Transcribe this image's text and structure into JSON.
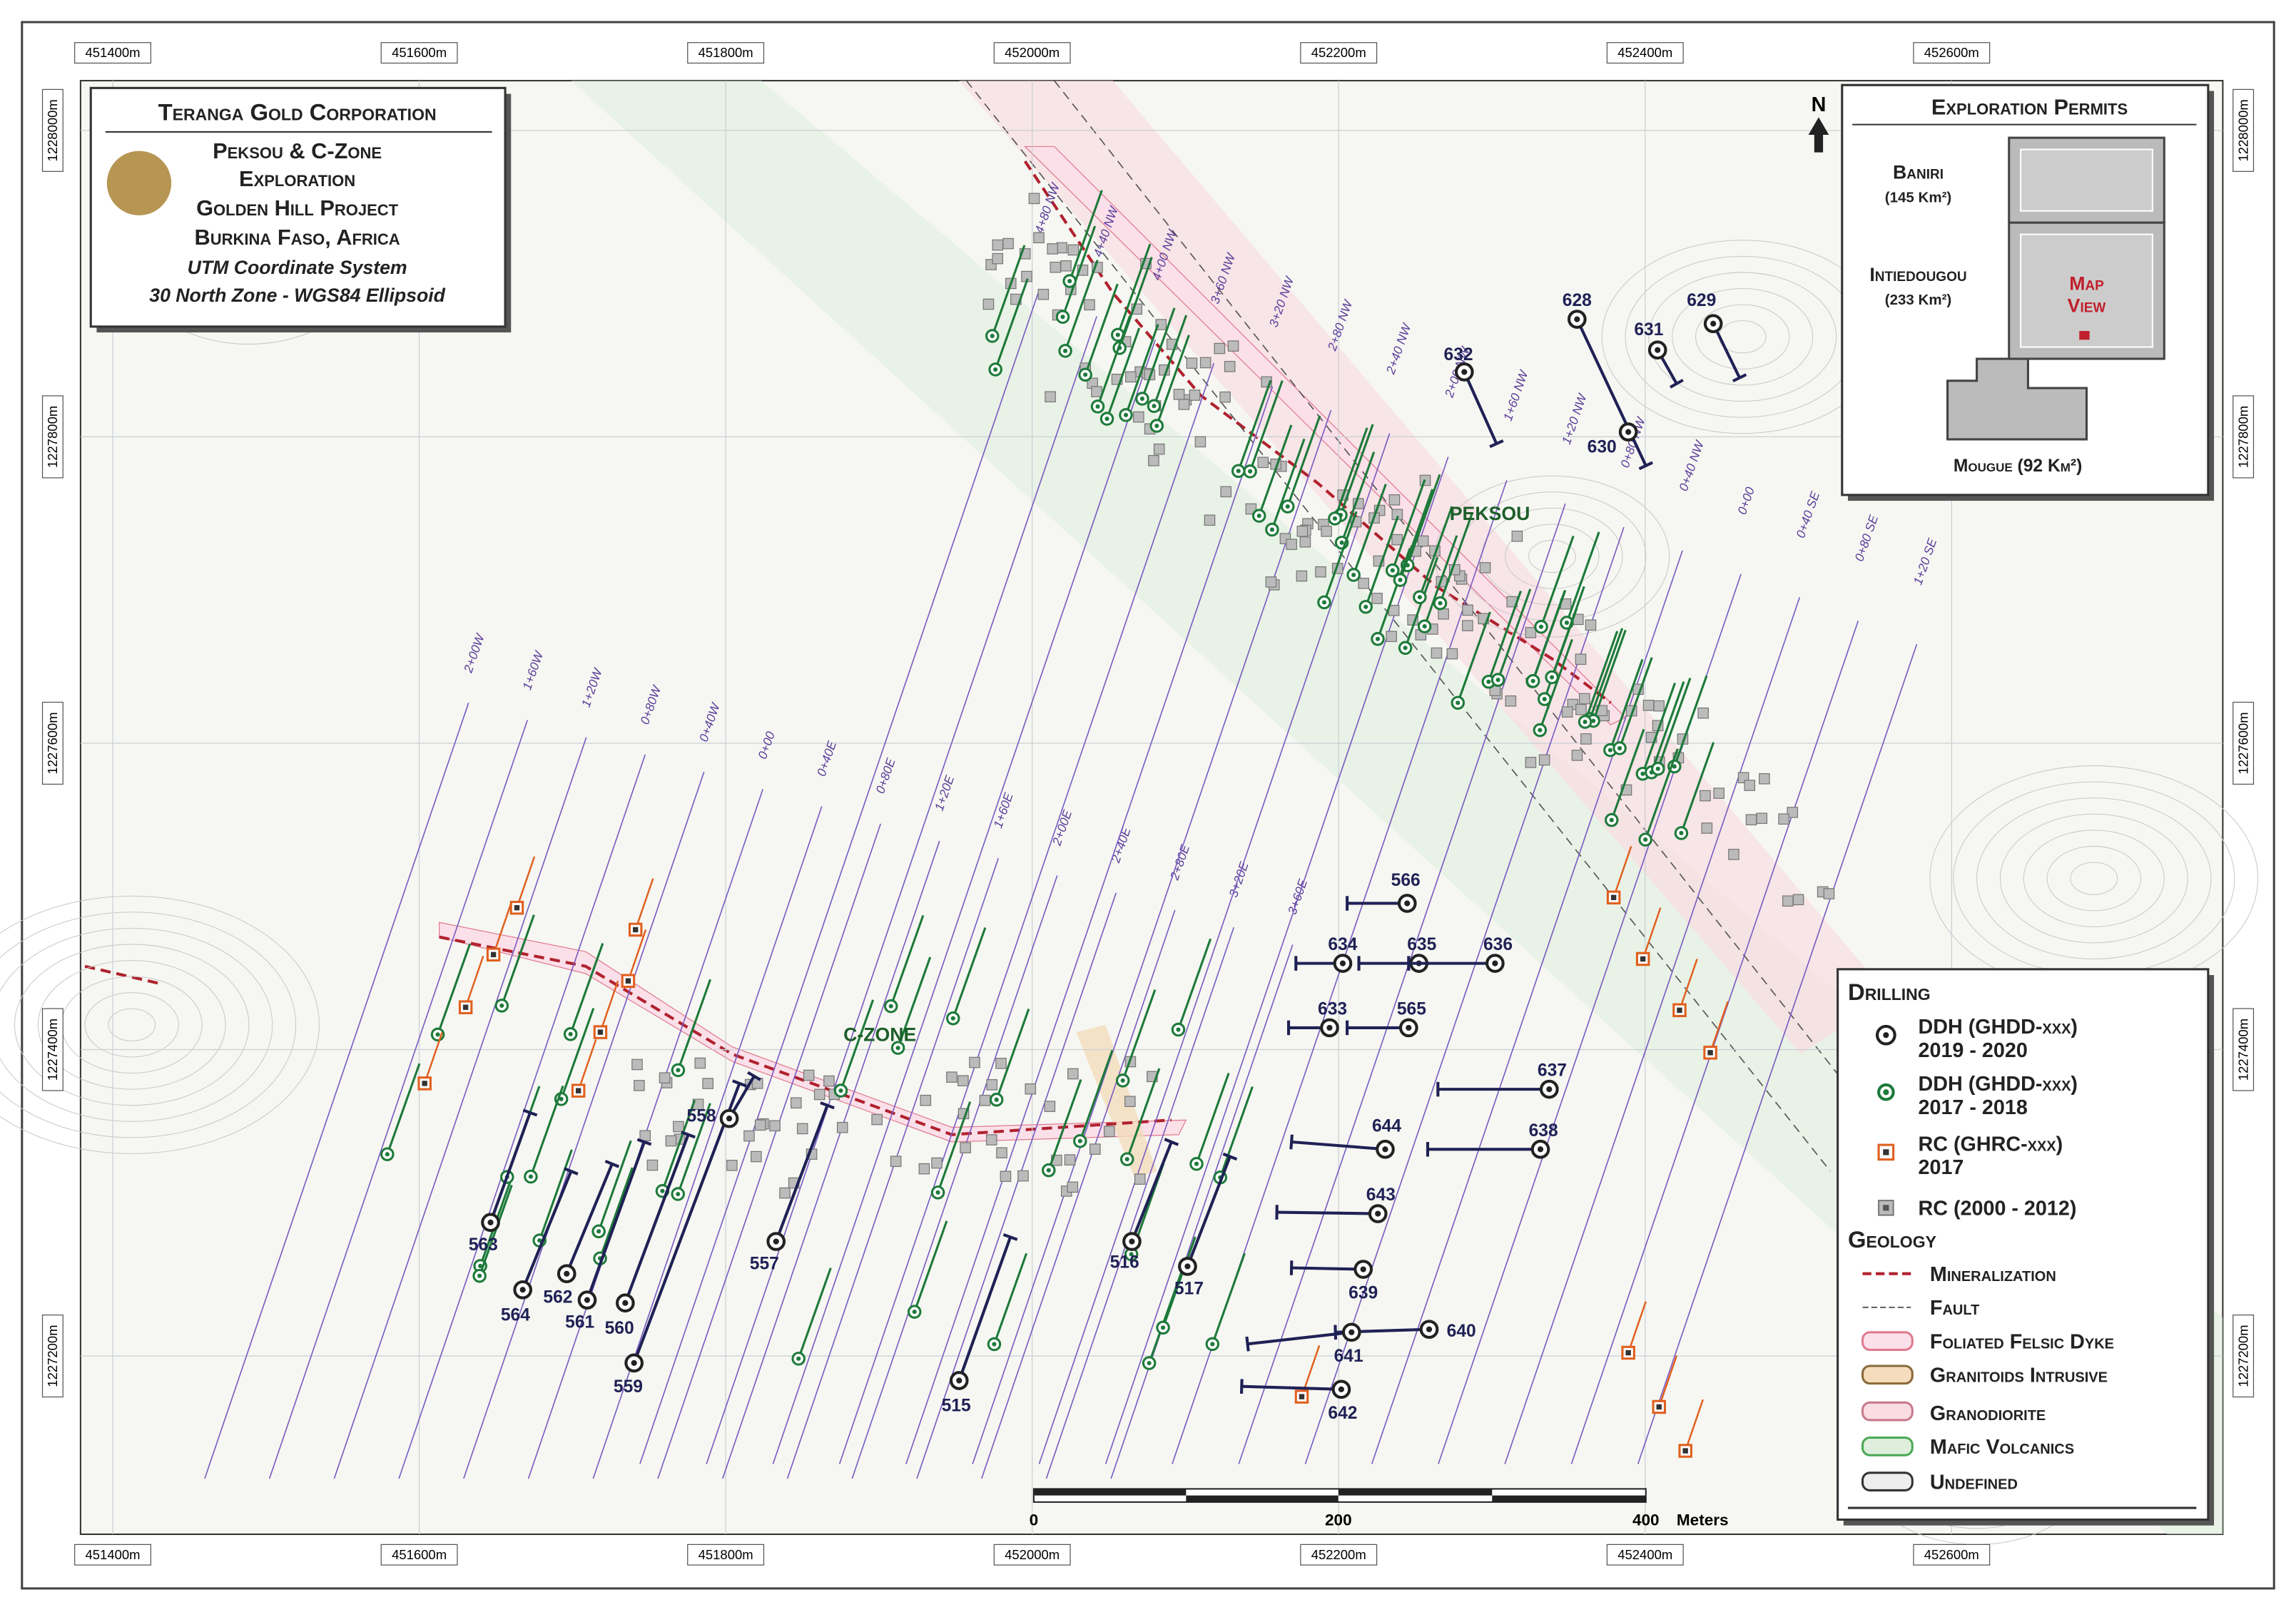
{
  "header": {
    "company": "Teranga Gold Corporation",
    "area": "Peksou & C-Zone",
    "subtitle": "Exploration",
    "project": "Golden Hill Project",
    "country": "Burkina Faso, Africa",
    "system": "UTM Coordinate System",
    "zone": "30 North Zone - WGS84 Ellipsoid"
  },
  "grid": {
    "x_labels": [
      "451400m",
      "451600m",
      "451800m",
      "452000m",
      "452200m",
      "452400m",
      "452600m"
    ],
    "y_labels": [
      "1228000m",
      "1227800m",
      "1227600m",
      "1227400m",
      "1227200m"
    ]
  },
  "permits": {
    "title": "Exploration Permits",
    "baniri": "Baniri",
    "baniri_area": "(145 Km²)",
    "intiedougou": "Intiedougou",
    "intiedougou_area": "(233 Km²)",
    "map_view": [
      "Map",
      "View"
    ],
    "mougue": "Mougue (92 Km²)"
  },
  "north": "N",
  "places": {
    "peksou": "PEKSOU",
    "czone": "C-ZONE"
  },
  "sections": {
    "east_west": [
      "2+00W",
      "1+60W",
      "1+20W",
      "0+80W",
      "0+40W",
      "0+00",
      "0+40E",
      "0+80E",
      "1+20E",
      "1+60E",
      "2+00E",
      "2+40E",
      "2+80E",
      "3+20E",
      "3+60E"
    ],
    "nw_se": [
      "4+80 NW",
      "4+40 NW",
      "4+00 NW",
      "3+60 NW",
      "3+20 NW",
      "2+80 NW",
      "2+40 NW",
      "2+00 NW",
      "1+60 NW",
      "1+20 NW",
      "0+80 NW",
      "0+40 NW",
      "0+00",
      "0+40 SE",
      "0+80 SE",
      "1+20 SE"
    ]
  },
  "holes": [
    "628",
    "629",
    "630",
    "631",
    "632",
    "563",
    "564",
    "562",
    "561",
    "560",
    "559",
    "558",
    "557",
    "515",
    "516",
    "517",
    "566",
    "634",
    "635",
    "636",
    "633",
    "565",
    "637",
    "638",
    "644",
    "643",
    "639",
    "640",
    "641",
    "642"
  ],
  "scale": {
    "labels": [
      "0",
      "200",
      "400"
    ],
    "unit": "Meters"
  },
  "legend": {
    "drilling": "Drilling",
    "ddh_new": [
      "DDH (GHDD-xxx)",
      "2019 - 2020"
    ],
    "ddh_old": [
      "DDH (GHDD-xxx)",
      "2017 - 2018"
    ],
    "rc_new": [
      "RC (GHRC-xxx)",
      "2017"
    ],
    "rc_old": "RC (2000 - 2012)",
    "geology": "Geology",
    "items": [
      "Mineralization",
      "Fault",
      "Foliated Felsic Dyke",
      "Granitoids Intrusive",
      "Granodiorite",
      "Mafic Volcanics",
      "Undefined"
    ]
  }
}
